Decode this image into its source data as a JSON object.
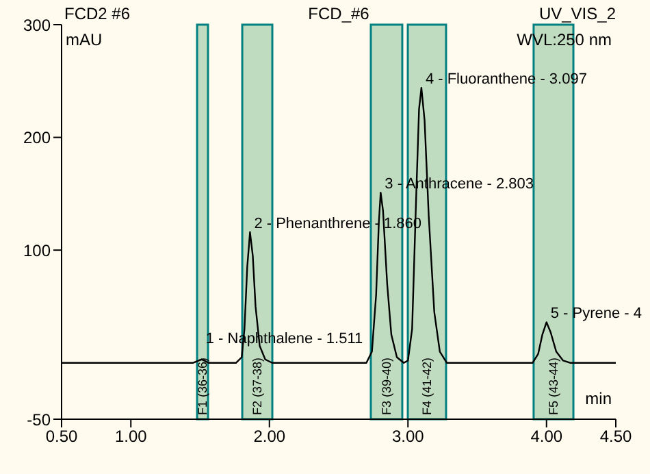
{
  "chart_data": {
    "type": "line",
    "title": "FCD_#6",
    "xlabel": "min",
    "ylabel": "mAU",
    "annotations": [
      "FCD2 #6",
      "UV_VIS_2",
      "WVL:250 nm",
      {
        "text": "1 - Naphthalene - 1.511",
        "x": 1.511,
        "y": 3
      },
      {
        "text": "2 - Phenanthrene - 1.860",
        "x": 1.86,
        "y": 116
      },
      {
        "text": "3 - Anthracene - 2.803",
        "x": 2.803,
        "y": 151
      },
      {
        "text": "4 - Fluoranthene - 3.097",
        "x": 3.097,
        "y": 244
      },
      {
        "text": "5 - Pyrene - 4",
        "x": 4.0,
        "y": 36
      }
    ],
    "x": [
      0.5,
      1.45,
      1.49,
      1.511,
      1.53,
      1.56,
      1.76,
      1.8,
      1.82,
      1.84,
      1.86,
      1.88,
      1.9,
      1.93,
      1.97,
      2.02,
      2.7,
      2.74,
      2.77,
      2.79,
      2.803,
      2.82,
      2.85,
      2.88,
      2.92,
      2.97,
      3.0,
      3.03,
      3.06,
      3.08,
      3.097,
      3.12,
      3.15,
      3.19,
      3.23,
      3.28,
      3.9,
      3.94,
      3.97,
      4.0,
      4.03,
      4.07,
      4.12,
      4.17,
      4.5
    ],
    "series": [
      {
        "color": "#000000",
        "values": [
          0,
          0,
          2,
          3,
          2,
          0,
          0,
          5,
          30,
          85,
          116,
          95,
          50,
          15,
          3,
          0,
          0,
          10,
          60,
          125,
          151,
          135,
          70,
          25,
          5,
          0,
          2,
          30,
          150,
          225,
          244,
          215,
          130,
          45,
          10,
          0,
          0,
          8,
          25,
          36,
          27,
          10,
          2,
          0,
          0
        ]
      }
    ],
    "xlim": [
      0.5,
      4.5
    ],
    "xticks": [
      {
        "value": 0.5,
        "label": "0.50"
      },
      {
        "value": 1,
        "label": "1.00"
      },
      {
        "value": 2,
        "label": "2.00"
      },
      {
        "value": 3,
        "label": "3.00"
      },
      {
        "value": 4,
        "label": "4.00"
      },
      {
        "value": 4.5,
        "label": "4.50"
      }
    ],
    "ylim": [
      -50,
      300
    ],
    "yticks": [
      -50,
      100,
      200,
      300
    ],
    "bands": [
      {
        "axis": "x",
        "from": 1.478,
        "to": 1.557,
        "label": "F1 (36-36)",
        "color": "#c0dcc0"
      },
      {
        "axis": "x",
        "from": 1.804,
        "to": 2.021,
        "label": "F2 (37-38)",
        "color": "#c0dcc0"
      },
      {
        "axis": "x",
        "from": 2.732,
        "to": 2.959,
        "label": "F3 (39-40)",
        "color": "#c0dcc0"
      },
      {
        "axis": "x",
        "from": 2.999,
        "to": 3.275,
        "label": "F4 (41-42)",
        "color": "#c0dcc0"
      },
      {
        "axis": "x",
        "from": 3.907,
        "to": 4.194,
        "label": "F5 (43-44)",
        "color": "#c0dcc0"
      }
    ],
    "grid": false,
    "marker": "none",
    "line_style": "solid"
  }
}
